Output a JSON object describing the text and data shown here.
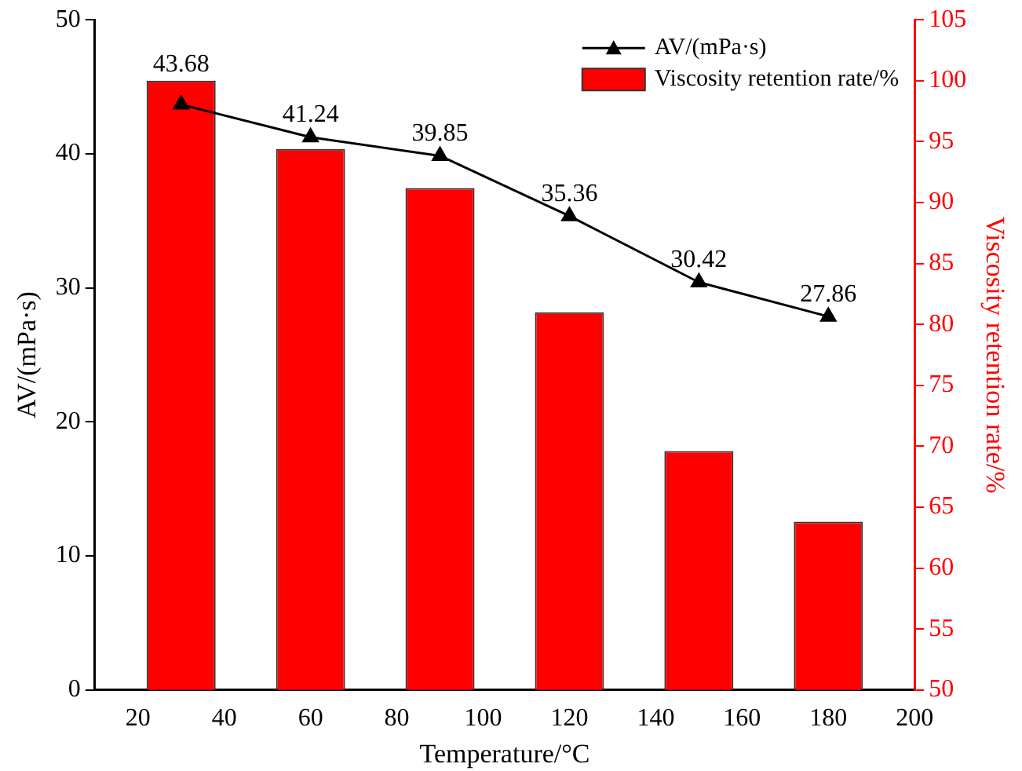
{
  "chart_data": {
    "type": "bar",
    "xlabel": "Temperature/°C",
    "ylabel": "AV/(mPa·s)",
    "y2label": "Viscosity retention rate/%",
    "x": [
      30,
      60,
      90,
      120,
      150,
      180
    ],
    "series": [
      {
        "name": "AV/(mPa·s)",
        "type": "line",
        "color": "#000000",
        "values": [
          43.68,
          41.24,
          39.85,
          35.36,
          30.42,
          27.86
        ],
        "value_labels": [
          "43.68",
          "41.24",
          "39.85",
          "35.36",
          "30.42",
          "27.86"
        ],
        "marker": "triangle"
      },
      {
        "name": "Viscosity retention rate/%",
        "axis": "y2",
        "color": "#ff0000",
        "values": [
          100,
          94.4,
          91.2,
          81,
          69.6,
          63.8
        ]
      }
    ],
    "xlim": [
      10,
      200
    ],
    "xticks": [
      20,
      40,
      60,
      80,
      100,
      120,
      140,
      160,
      180,
      200
    ],
    "ylim": [
      0,
      50
    ],
    "yticks": [
      0,
      10,
      20,
      30,
      40,
      50
    ],
    "y2lim": [
      50,
      105
    ],
    "y2ticks": [
      50,
      55,
      60,
      65,
      70,
      75,
      80,
      85,
      90,
      95,
      100,
      105
    ],
    "grid": false,
    "legend": "top right"
  }
}
